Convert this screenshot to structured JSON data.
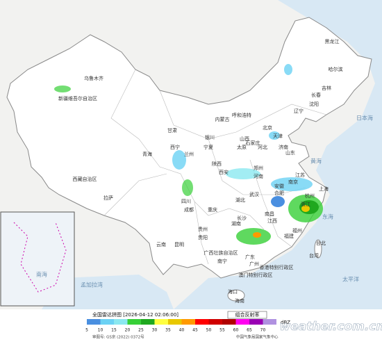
{
  "map": {
    "labels": [
      "黑龙江",
      "哈尔滨",
      "吉林",
      "长春",
      "辽宁",
      "沈阳",
      "内蒙古",
      "呼和浩特",
      "北京",
      "天津",
      "河北",
      "石家庄",
      "山西",
      "太原",
      "山东",
      "济南",
      "宁夏",
      "银川",
      "甘肃",
      "兰州",
      "青海",
      "西宁",
      "新疆维吾尔自治区",
      "乌鲁木齐",
      "西藏自治区",
      "拉萨",
      "陕西",
      "西安",
      "河南",
      "郑州",
      "江苏",
      "南京",
      "安徽",
      "合肥",
      "上海",
      "湖北",
      "武汉",
      "四川",
      "成都",
      "重庆",
      "浙江",
      "杭州",
      "湖南",
      "长沙",
      "江西",
      "南昌",
      "贵州",
      "贵阳",
      "福建",
      "福州",
      "台湾",
      "台北",
      "云南",
      "昆明",
      "广西壮族自治区",
      "南宁",
      "广东",
      "广州",
      "香港特别行政区",
      "澳门特别行政区",
      "海南",
      "海口"
    ],
    "seas": [
      "日本海",
      "黄海",
      "东海",
      "太平洋",
      "孟加拉湾",
      "南海"
    ]
  },
  "footer": {
    "title": "全国雷达拼图 [2026-04-12 02:06:00]",
    "product": "组合反射率",
    "legend": {
      "levels": [
        5,
        10,
        15,
        20,
        25,
        30,
        35,
        40,
        45,
        50,
        55,
        60,
        65,
        70
      ],
      "colors": [
        "#4a8fe0",
        "#6cd2f4",
        "#8be8f0",
        "#37d037",
        "#1fa81f",
        "#ffff40",
        "#e8c800",
        "#ff9a00",
        "#ff0000",
        "#d00000",
        "#b00000",
        "#ff00f0",
        "#9a00b4",
        "#b091e0"
      ],
      "unit": "dBZ"
    },
    "approval": "审图号: GS京 (2022) 0372号",
    "agency": "中国气象局国家气象中心",
    "watermark": "weather.com.cn"
  }
}
